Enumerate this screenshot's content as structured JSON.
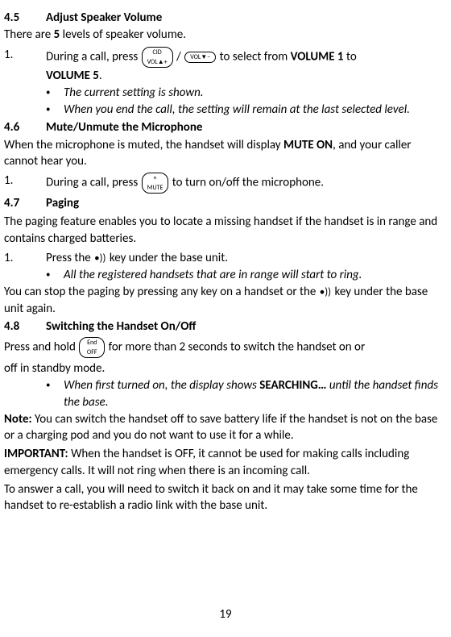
{
  "sections": {
    "s45": {
      "num": "4.5",
      "title": "Adjust Speaker Volume"
    },
    "s46": {
      "num": "4.6",
      "title": "Mute/Unmute the Microphone"
    },
    "s47": {
      "num": "4.7",
      "title": "Paging"
    },
    "s48": {
      "num": "4.8",
      "title": "Switching the Handset On/Off"
    }
  },
  "s45": {
    "intro_pre": "There are ",
    "intro_bold": "5",
    "intro_post": " levels of speaker volume.",
    "step1_num": "1.",
    "step1_pre": "During a call, press ",
    "step1_mid": " / ",
    "step1_post": " to select from ",
    "step1_bold1": "VOLUME 1",
    "step1_to": " to",
    "step1_bold2": "VOLUME 5",
    "step1_period": ".",
    "bullet1": "The current setting is shown.",
    "bullet2": "When you end the call, the setting will remain at the last selected level.",
    "key_volup": "CID\nVOL+",
    "key_voldown": "VOL−"
  },
  "s46": {
    "intro_pre": "When the microphone is muted, the handset will display ",
    "intro_bold": "MUTE ON",
    "intro_post": ", and your caller cannot hear you.",
    "step1_num": "1.",
    "step1_pre": "During a call, press ",
    "step1_post": " to turn on/off the microphone.",
    "key_mute": "×\nMUTE"
  },
  "s47": {
    "intro": "The paging feature enables you to locate a missing handset if the handset is in range and contains charged batteries.",
    "step1_num": "1.",
    "step1_pre": "Press the ",
    "step1_post": " key under the base unit.",
    "bullet1": "All the registered handsets that are in range will start to ring.",
    "cont_pre": "You can stop the paging by pressing any key on a handset or the ",
    "cont_post": " key under the base unit again.",
    "key_page": "•))"
  },
  "s48": {
    "intro_pre": "Press and hold ",
    "intro_post": " for more than 2 seconds to switch the handset on or",
    "intro_line2": "off in standby mode.",
    "bullet1_pre": "When first turned on, the display shows ",
    "bullet1_bold": "SEARCHING…",
    "bullet1_post": " until the handset finds the base.",
    "note_label": "Note:",
    "note_text": " You can switch the handset off to save battery life if the handset is not on the base or a charging pod and you do not want to use it for a while.",
    "important_label": "IMPORTANT:",
    "important_text": " When the handset is OFF, it cannot be used for making calls including emergency calls. It will not ring when there is an incoming call.",
    "important_text2": "To answer a call, you will need to switch it back on and it may take some time for the handset to re-establish a radio link with the base unit.",
    "key_end": "End\nOFF"
  },
  "page_number": "19"
}
